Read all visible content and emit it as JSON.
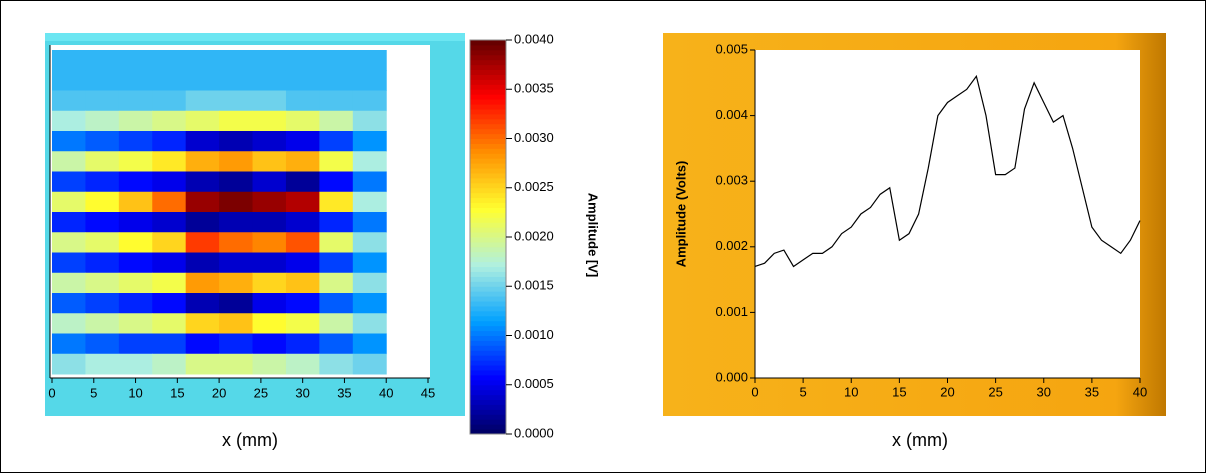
{
  "chart_data": [
    {
      "type": "heatmap",
      "x_label": "x (mm)",
      "colorbar_label": "Amplitude [V]",
      "x": [
        2,
        6,
        10,
        14,
        18,
        22,
        26,
        30,
        34,
        38
      ],
      "z": [
        [
          0.0013,
          0.0013,
          0.0013,
          0.0013,
          0.0013,
          0.0013,
          0.0013,
          0.0013,
          0.0013,
          0.0013
        ],
        [
          0.0013,
          0.0013,
          0.0013,
          0.0013,
          0.0013,
          0.0013,
          0.0013,
          0.0013,
          0.0013,
          0.0013
        ],
        [
          0.0014,
          0.0014,
          0.0014,
          0.0014,
          0.0015,
          0.0015,
          0.0015,
          0.0014,
          0.0014,
          0.0014
        ],
        [
          0.0017,
          0.0018,
          0.0019,
          0.002,
          0.0021,
          0.0022,
          0.0022,
          0.0021,
          0.0019,
          0.0016
        ],
        [
          0.001,
          0.0009,
          0.0008,
          0.0007,
          0.0004,
          0.0003,
          0.0004,
          0.0005,
          0.0008,
          0.0011
        ],
        [
          0.0019,
          0.0021,
          0.0022,
          0.0024,
          0.0027,
          0.0028,
          0.0026,
          0.0027,
          0.0022,
          0.0017
        ],
        [
          0.0008,
          0.0007,
          0.0006,
          0.0005,
          0.0003,
          0.0002,
          0.0004,
          0.0002,
          0.0006,
          0.001
        ],
        [
          0.0021,
          0.0023,
          0.0026,
          0.003,
          0.0038,
          0.0039,
          0.0038,
          0.0037,
          0.0024,
          0.0017
        ],
        [
          0.0007,
          0.0006,
          0.0005,
          0.0004,
          0.0002,
          0.0003,
          0.0003,
          0.0004,
          0.0007,
          0.001
        ],
        [
          0.002,
          0.0021,
          0.0023,
          0.0025,
          0.0032,
          0.003,
          0.0029,
          0.0031,
          0.0021,
          0.0016
        ],
        [
          0.0008,
          0.0007,
          0.0006,
          0.0005,
          0.0003,
          0.0004,
          0.0004,
          0.0005,
          0.0008,
          0.0011
        ],
        [
          0.0019,
          0.002,
          0.0021,
          0.0022,
          0.0028,
          0.0027,
          0.0025,
          0.0026,
          0.002,
          0.0016
        ],
        [
          0.0009,
          0.0008,
          0.0007,
          0.0006,
          0.0003,
          0.0002,
          0.0005,
          0.0006,
          0.0009,
          0.0011
        ],
        [
          0.0018,
          0.0019,
          0.002,
          0.0021,
          0.0025,
          0.0026,
          0.0023,
          0.0022,
          0.0019,
          0.0016
        ],
        [
          0.001,
          0.0009,
          0.0008,
          0.0008,
          0.0006,
          0.0007,
          0.0006,
          0.0007,
          0.0009,
          0.0011
        ],
        [
          0.0016,
          0.0017,
          0.0017,
          0.0018,
          0.002,
          0.002,
          0.0019,
          0.0018,
          0.0016,
          0.0015
        ]
      ],
      "xlim": [
        0,
        45
      ],
      "xticks": [
        0,
        5,
        10,
        15,
        20,
        25,
        30,
        35,
        40,
        45
      ],
      "zlim": [
        0,
        0.004
      ],
      "zticks": [
        {
          "value": 0.004,
          "label": "0.0040"
        },
        {
          "value": 0.0035,
          "label": "0.0035"
        },
        {
          "value": 0.003,
          "label": "0.0030"
        },
        {
          "value": 0.0025,
          "label": "0.0025"
        },
        {
          "value": 0.002,
          "label": "0.0020"
        },
        {
          "value": 0.0015,
          "label": "0.0015"
        },
        {
          "value": 0.001,
          "label": "0.0010"
        },
        {
          "value": 0.0005,
          "label": "0.0005"
        },
        {
          "value": 0,
          "label": "0.0000"
        }
      ],
      "colors": [
        "#000060",
        "#0000ff",
        "#00a0ff",
        "#b0f0e0",
        "#ffff30",
        "#ff9000",
        "#ff0000",
        "#600000"
      ]
    },
    {
      "type": "line",
      "x_label": "x (mm)",
      "y_label": "Amplitude (Volts)",
      "x": [
        0,
        1,
        2,
        3,
        4,
        5,
        6,
        7,
        8,
        9,
        10,
        11,
        12,
        13,
        14,
        15,
        16,
        17,
        18,
        19,
        20,
        21,
        22,
        23,
        24,
        25,
        26,
        27,
        28,
        29,
        30,
        31,
        32,
        33,
        34,
        35,
        36,
        37,
        38,
        39,
        40
      ],
      "series": [
        {
          "color": "#000000",
          "values": [
            0.0017,
            0.00175,
            0.0019,
            0.00195,
            0.0017,
            0.0018,
            0.0019,
            0.0019,
            0.002,
            0.0022,
            0.0023,
            0.0025,
            0.0026,
            0.0028,
            0.0029,
            0.0021,
            0.0022,
            0.0025,
            0.0032,
            0.004,
            0.0042,
            0.0043,
            0.0044,
            0.0046,
            0.004,
            0.0031,
            0.0031,
            0.0032,
            0.0041,
            0.0045,
            0.0042,
            0.0039,
            0.004,
            0.0035,
            0.0029,
            0.0023,
            0.0021,
            0.002,
            0.0019,
            0.0021,
            0.0024
          ]
        }
      ],
      "xlim": [
        0,
        40
      ],
      "ylim": [
        0,
        0.005
      ],
      "xticks": [
        0,
        5,
        10,
        15,
        20,
        25,
        30,
        35,
        40
      ],
      "yticks": [
        {
          "value": 0,
          "label": "0.000"
        },
        0.001,
        0.002,
        0.003,
        0.004,
        0.005
      ]
    }
  ]
}
